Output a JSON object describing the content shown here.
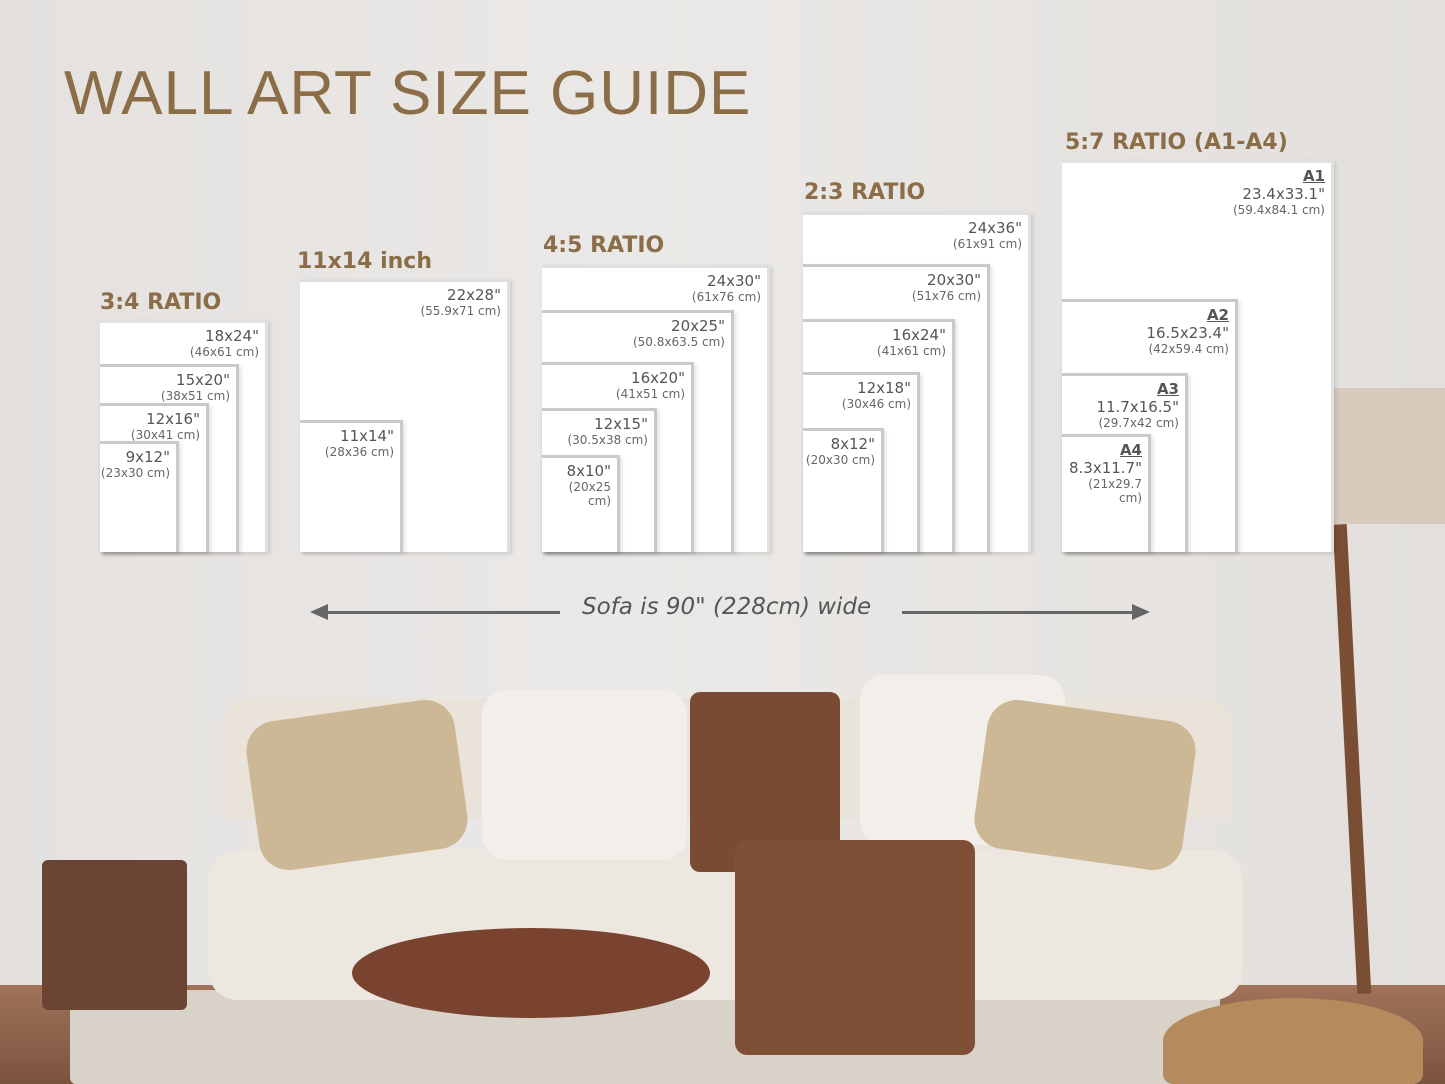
{
  "title": "WALL ART SIZE GUIDE",
  "groups": [
    {
      "title": "3:4 RATIO",
      "frames": [
        {
          "in": "18x24\"",
          "cm": "(46x61 cm)"
        },
        {
          "in": "15x20\"",
          "cm": "(38x51 cm)"
        },
        {
          "in": "12x16\"",
          "cm": "(30x41 cm)"
        },
        {
          "in": "9x12\"",
          "cm": "(23x30 cm)"
        }
      ]
    },
    {
      "title": "11x14 inch",
      "frames": [
        {
          "in": "22x28\"",
          "cm": "(55.9x71 cm)"
        },
        {
          "in": "11x14\"",
          "cm": "(28x36 cm)"
        }
      ]
    },
    {
      "title": "4:5 RATIO",
      "frames": [
        {
          "in": "24x30\"",
          "cm": "(61x76 cm)"
        },
        {
          "in": "20x25\"",
          "cm": "(50.8x63.5 cm)"
        },
        {
          "in": "16x20\"",
          "cm": "(41x51 cm)"
        },
        {
          "in": "12x15\"",
          "cm": "(30.5x38 cm)"
        },
        {
          "in": "8x10\"",
          "cm": "(20x25 cm)"
        }
      ]
    },
    {
      "title": "2:3 RATIO",
      "frames": [
        {
          "in": "24x36\"",
          "cm": "(61x91 cm)"
        },
        {
          "in": "20x30\"",
          "cm": "(51x76 cm)"
        },
        {
          "in": "16x24\"",
          "cm": "(41x61 cm)"
        },
        {
          "in": "12x18\"",
          "cm": "(30x46 cm)"
        },
        {
          "in": "8x12\"",
          "cm": "(20x30 cm)"
        }
      ]
    },
    {
      "title": "5:7 RATIO (A1-A4)",
      "frames": [
        {
          "code": "A1",
          "in": "23.4x33.1\"",
          "cm": "(59.4x84.1 cm)"
        },
        {
          "code": "A2",
          "in": "16.5x23.4\"",
          "cm": "(42x59.4 cm)"
        },
        {
          "code": "A3",
          "in": "11.7x16.5\"",
          "cm": "(29.7x42 cm)"
        },
        {
          "code": "A4",
          "in": "8.3x11.7\"",
          "cm": "(21x29.7 cm)"
        }
      ]
    }
  ],
  "sofa_note": "Sofa is 90\" (228cm) wide",
  "colors": {
    "accent": "#8b6d47",
    "frame_border": "#c9c9c9"
  }
}
